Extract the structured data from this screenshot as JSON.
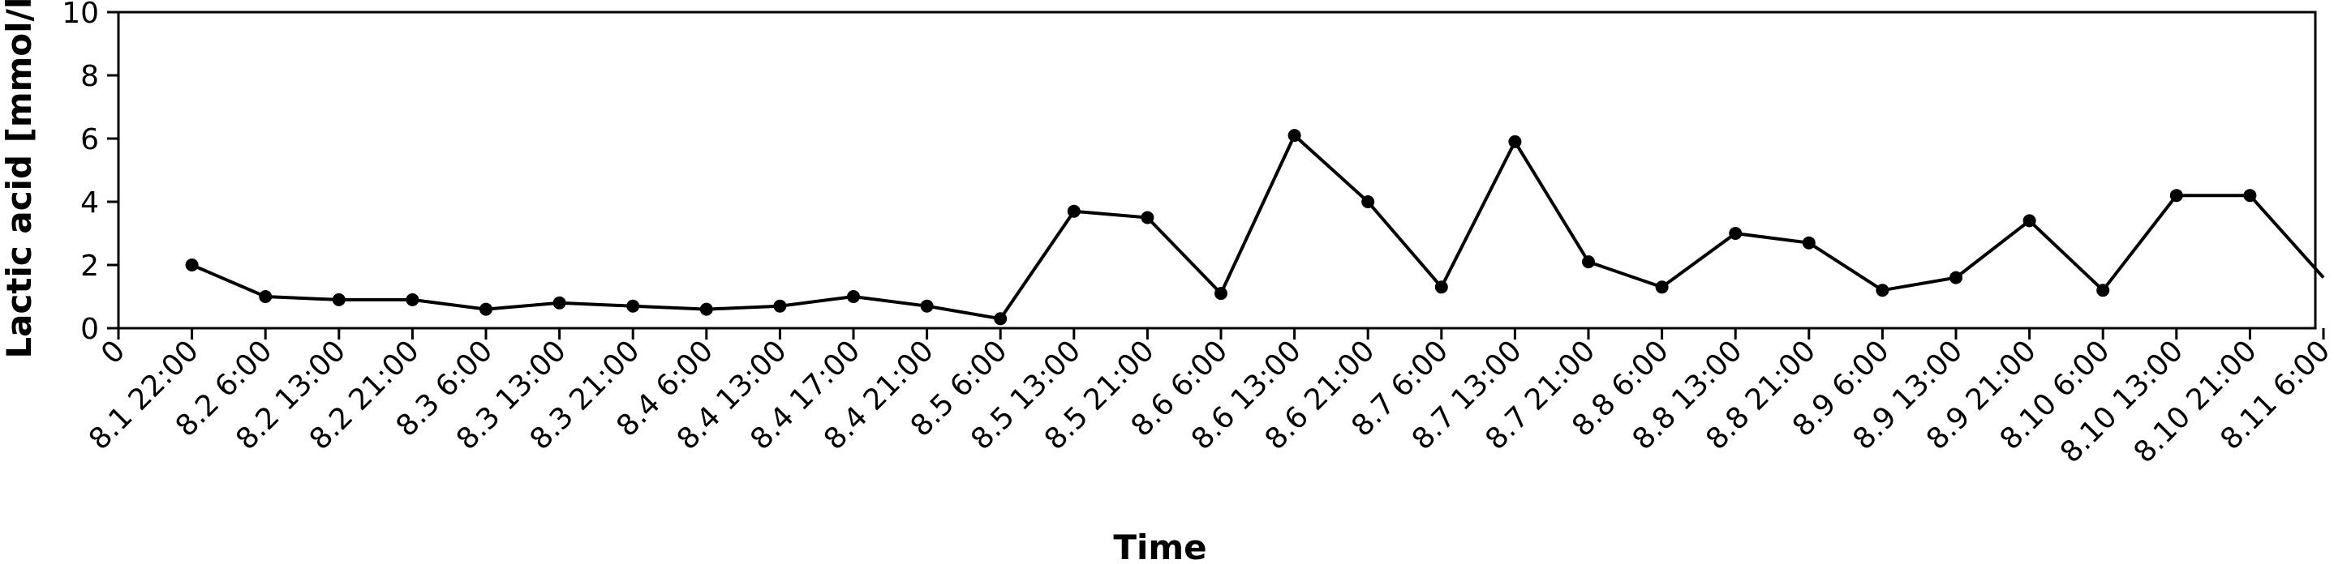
{
  "chart_data": {
    "type": "line",
    "title": "",
    "xlabel": "Time",
    "ylabel": "Lactic acid [mmol/l]",
    "ylim": [
      0,
      10
    ],
    "yticks": [
      "0",
      "2",
      "4",
      "6",
      "8",
      "10"
    ],
    "x_origin_label": "0",
    "grid": false,
    "legend": "none",
    "line_color": "#000000",
    "categories": [
      "8.1 22:00",
      "8.2 6:00",
      "8.2 13:00",
      "8.2 21:00",
      "8.3 6:00",
      "8.3 13:00",
      "8.3 21:00",
      "8.4 6:00",
      "8.4 13:00",
      "8.4 17:00",
      "8.4 21:00",
      "8.5 6:00",
      "8.5 13:00",
      "8.5 21:00",
      "8.6 6:00",
      "8.6 13:00",
      "8.6 21:00",
      "8.7 6:00",
      "8.7 13:00",
      "8.7 21:00",
      "8.8 6:00",
      "8.8 13:00",
      "8.8 21:00",
      "8.9 6:00",
      "8.9 13:00",
      "8.9 21:00",
      "8.10 6:00",
      "8.10 13:00",
      "8.10 21:00",
      "8.11 6:00"
    ],
    "values": [
      2.0,
      1.0,
      0.9,
      0.9,
      0.6,
      0.8,
      0.7,
      0.6,
      0.7,
      1.0,
      0.7,
      0.3,
      3.7,
      3.5,
      1.1,
      6.1,
      4.0,
      1.3,
      5.9,
      2.1,
      1.3,
      3.0,
      2.7,
      1.2,
      1.6,
      3.4,
      1.2,
      4.2,
      4.2,
      1.6
    ]
  }
}
